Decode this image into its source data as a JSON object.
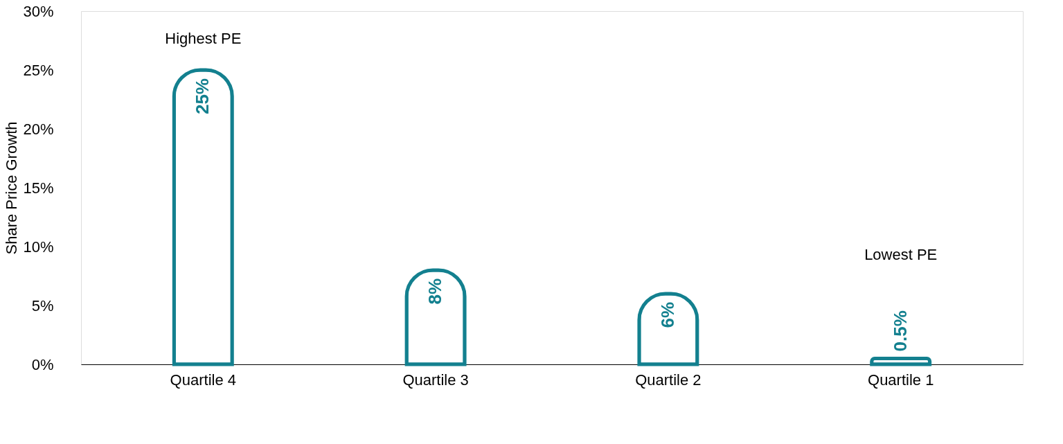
{
  "chart_data": {
    "type": "bar",
    "ylabel": "Share Price Growth",
    "categories": [
      "Quartile 4",
      "Quartile 3",
      "Quartile 2",
      "Quartile 1"
    ],
    "values": [
      25,
      8,
      6,
      0.5
    ],
    "value_labels": [
      "25%",
      "8%",
      "6%",
      "0.5%"
    ],
    "color": "#13808f",
    "ylim": [
      0,
      30
    ],
    "yticks": [
      {
        "value": 0,
        "label": "0%"
      },
      {
        "value": 5,
        "label": "5%"
      },
      {
        "value": 10,
        "label": "10%"
      },
      {
        "value": 15,
        "label": "15%"
      },
      {
        "value": 20,
        "label": "20%"
      },
      {
        "value": 25,
        "label": "25%"
      },
      {
        "value": 30,
        "label": "30%"
      }
    ],
    "grid": false,
    "annotations": [
      "Highest PE",
      "Lowest PE"
    ]
  }
}
